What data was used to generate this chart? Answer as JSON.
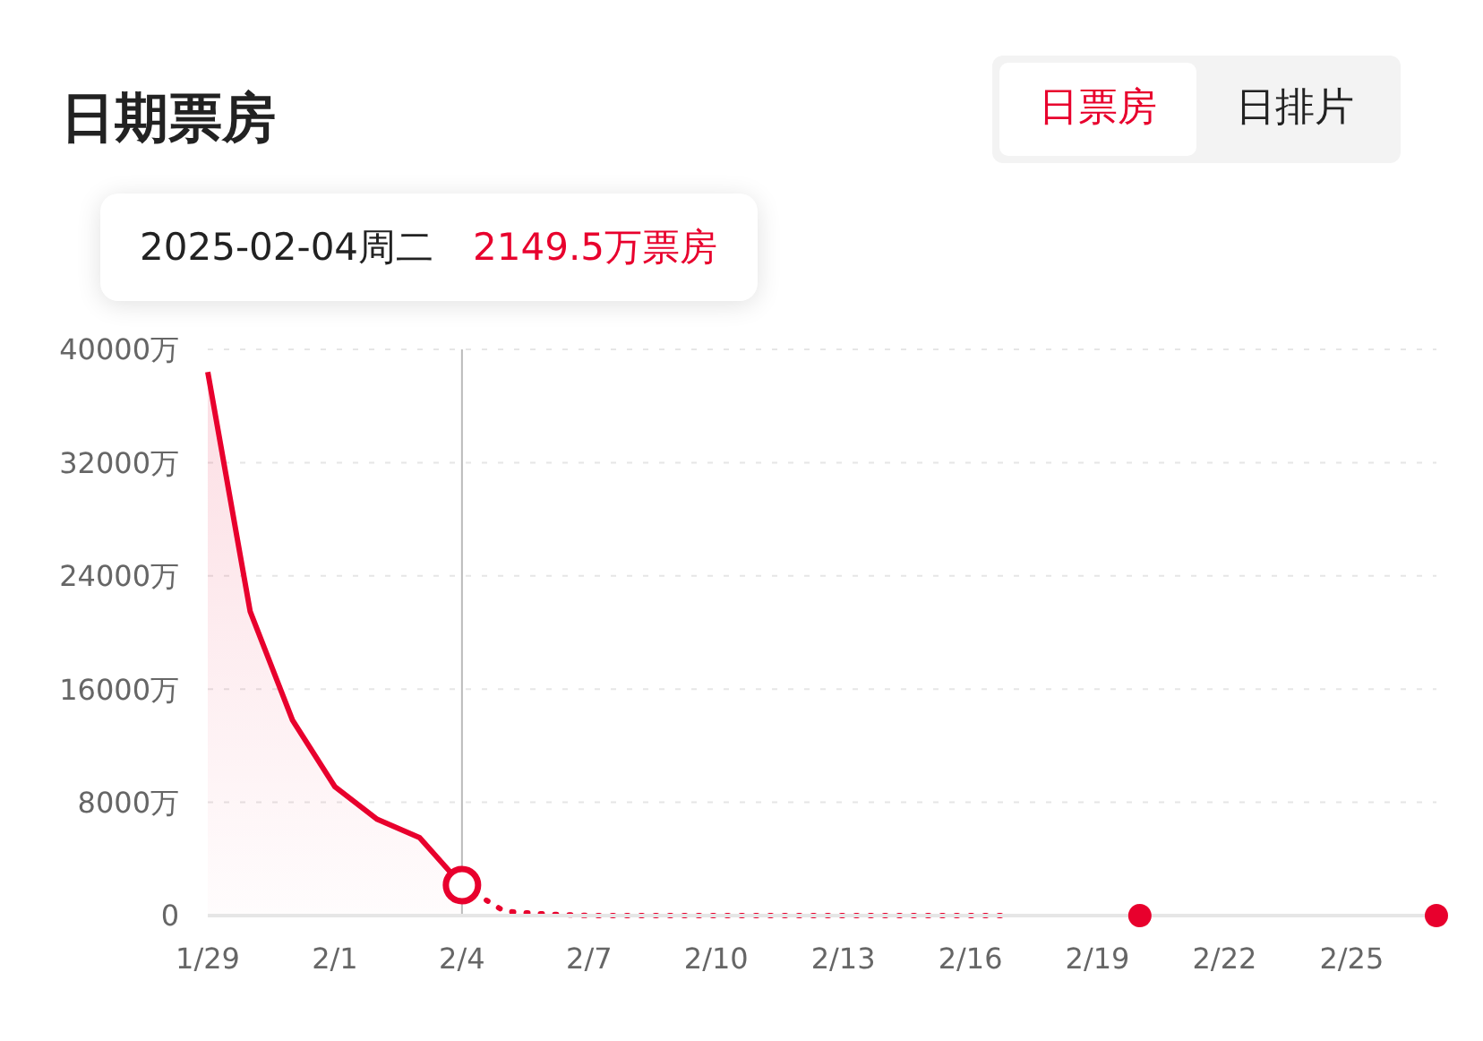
{
  "chart_data": {
    "type": "line",
    "title": "日期票房",
    "annotations": [
      "日票房",
      "日排片",
      "2025-02-04周二",
      "2149.5万票房"
    ],
    "series": [
      {
        "type": "area",
        "color": "#e8002d",
        "x": [
          "--01-29",
          "--01-30",
          "--01-31",
          "--02-01",
          "--02-02",
          "--02-03",
          "--02-04"
        ],
        "values": [
          38400,
          21500,
          13800,
          9100,
          6800,
          5500,
          2149.5
        ]
      },
      {
        "line_style": "dotted",
        "color": "#e8002d",
        "x": [
          "--02-04",
          "--02-05",
          "--02-06",
          "--02-07",
          "--02-08",
          "--02-09",
          "--02-10",
          "--02-11",
          "--02-12",
          "--02-13",
          "--02-14",
          "--02-15",
          "--02-16",
          "--02-17"
        ],
        "values": [
          2149.5,
          300,
          100,
          0,
          0,
          0,
          0,
          0,
          0,
          0,
          0,
          0,
          0,
          0
        ]
      },
      {
        "type": "scatter",
        "marker": "circle",
        "color": "#e8002d",
        "x": [
          "--02-20",
          "--02-27"
        ],
        "values": [
          0,
          0
        ]
      }
    ],
    "xlim": [
      "--01-29",
      "--02-27"
    ],
    "xticks": [
      {
        "value": "--01-29",
        "label": "1/29"
      },
      {
        "value": "--02-01",
        "label": "2/1"
      },
      {
        "value": "--02-04",
        "label": "2/4"
      },
      {
        "value": "--02-07",
        "label": "2/7"
      },
      {
        "value": "--02-10",
        "label": "2/10"
      },
      {
        "value": "--02-13",
        "label": "2/13"
      },
      {
        "value": "--02-16",
        "label": "2/16"
      },
      {
        "value": "--02-19",
        "label": "2/19"
      },
      {
        "value": "--02-22",
        "label": "2/22"
      },
      {
        "value": "--02-25",
        "label": "2/25"
      }
    ],
    "ylim": [
      0,
      40000
    ],
    "yticks": [
      0,
      {
        "value": 8000,
        "label": "8000万"
      },
      {
        "value": 16000,
        "label": "16000万"
      },
      {
        "value": 24000,
        "label": "24000万"
      },
      {
        "value": 32000,
        "label": "32000万"
      },
      {
        "value": 40000,
        "label": "40000万"
      }
    ],
    "grid": "y",
    "ref_lines": [
      {
        "axis": "x",
        "value": "--02-04",
        "color": "#bbbbbb"
      }
    ]
  }
}
